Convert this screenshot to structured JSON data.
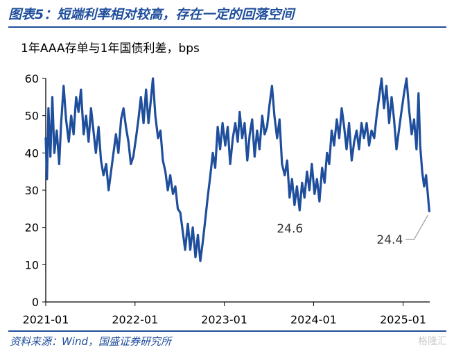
{
  "header": {
    "title": "图表5：短端利率相对较高，存在一定的回落空间"
  },
  "footer": {
    "source": "资料来源：Wind，国盛证券研究所",
    "watermark": "格隆汇"
  },
  "chart_data": {
    "type": "line",
    "subtitle": "1年AAA存单与1年国债利差，bps",
    "ylim": [
      0,
      60
    ],
    "yticks": [
      0,
      10,
      20,
      30,
      40,
      50,
      60
    ],
    "xlim": [
      "2021-01-01",
      "2025-04-20"
    ],
    "xticks": [
      "2021-01",
      "2022-01",
      "2023-01",
      "2024-01",
      "2025-01"
    ],
    "grid": false,
    "series": [
      {
        "color": "#1f4e9c",
        "points": [
          [
            "2021-01-01",
            44
          ],
          [
            "2021-01-06",
            33
          ],
          [
            "2021-01-12",
            52
          ],
          [
            "2021-01-20",
            39
          ],
          [
            "2021-01-28",
            55
          ],
          [
            "2021-02-05",
            40
          ],
          [
            "2021-02-15",
            46
          ],
          [
            "2021-02-25",
            37
          ],
          [
            "2021-03-05",
            48
          ],
          [
            "2021-03-15",
            58
          ],
          [
            "2021-03-25",
            49
          ],
          [
            "2021-04-05",
            43
          ],
          [
            "2021-04-15",
            50
          ],
          [
            "2021-04-25",
            45
          ],
          [
            "2021-05-05",
            55
          ],
          [
            "2021-05-15",
            51
          ],
          [
            "2021-05-25",
            57
          ],
          [
            "2021-06-05",
            45
          ],
          [
            "2021-06-15",
            50
          ],
          [
            "2021-06-25",
            43
          ],
          [
            "2021-07-05",
            52
          ],
          [
            "2021-07-15",
            46
          ],
          [
            "2021-07-25",
            40
          ],
          [
            "2021-08-05",
            47
          ],
          [
            "2021-08-15",
            38
          ],
          [
            "2021-08-25",
            34
          ],
          [
            "2021-09-05",
            37
          ],
          [
            "2021-09-15",
            30
          ],
          [
            "2021-09-25",
            35
          ],
          [
            "2021-10-05",
            40
          ],
          [
            "2021-10-15",
            45
          ],
          [
            "2021-10-25",
            40
          ],
          [
            "2021-11-05",
            49
          ],
          [
            "2021-11-15",
            52
          ],
          [
            "2021-11-25",
            47
          ],
          [
            "2021-12-05",
            43
          ],
          [
            "2021-12-15",
            37
          ],
          [
            "2021-12-25",
            39
          ],
          [
            "2022-01-05",
            44
          ],
          [
            "2022-01-15",
            49
          ],
          [
            "2022-01-25",
            55
          ],
          [
            "2022-02-05",
            48
          ],
          [
            "2022-02-15",
            57
          ],
          [
            "2022-02-25",
            48
          ],
          [
            "2022-03-05",
            53
          ],
          [
            "2022-03-15",
            60
          ],
          [
            "2022-03-25",
            50
          ],
          [
            "2022-04-05",
            44
          ],
          [
            "2022-04-15",
            46
          ],
          [
            "2022-04-25",
            38
          ],
          [
            "2022-05-05",
            35
          ],
          [
            "2022-05-15",
            30
          ],
          [
            "2022-05-25",
            34
          ],
          [
            "2022-06-05",
            29
          ],
          [
            "2022-06-15",
            31
          ],
          [
            "2022-06-25",
            25
          ],
          [
            "2022-07-05",
            24
          ],
          [
            "2022-07-15",
            19
          ],
          [
            "2022-07-25",
            14
          ],
          [
            "2022-08-05",
            21
          ],
          [
            "2022-08-15",
            14
          ],
          [
            "2022-08-25",
            20
          ],
          [
            "2022-09-05",
            12
          ],
          [
            "2022-09-15",
            18
          ],
          [
            "2022-09-25",
            11
          ],
          [
            "2022-10-05",
            16
          ],
          [
            "2022-10-15",
            22
          ],
          [
            "2022-10-25",
            28
          ],
          [
            "2022-11-05",
            34
          ],
          [
            "2022-11-15",
            40
          ],
          [
            "2022-11-25",
            36
          ],
          [
            "2022-12-05",
            47
          ],
          [
            "2022-12-15",
            41
          ],
          [
            "2022-12-25",
            48
          ],
          [
            "2023-01-05",
            42
          ],
          [
            "2023-01-15",
            47
          ],
          [
            "2023-01-25",
            37
          ],
          [
            "2023-02-05",
            44
          ],
          [
            "2023-02-15",
            48
          ],
          [
            "2023-02-25",
            43
          ],
          [
            "2023-03-05",
            51
          ],
          [
            "2023-03-15",
            44
          ],
          [
            "2023-03-25",
            48
          ],
          [
            "2023-04-05",
            38
          ],
          [
            "2023-04-15",
            45
          ],
          [
            "2023-04-25",
            49
          ],
          [
            "2023-05-05",
            39
          ],
          [
            "2023-05-15",
            46
          ],
          [
            "2023-05-25",
            41
          ],
          [
            "2023-06-05",
            50
          ],
          [
            "2023-06-15",
            45
          ],
          [
            "2023-06-25",
            47
          ],
          [
            "2023-07-05",
            53
          ],
          [
            "2023-07-15",
            58
          ],
          [
            "2023-07-25",
            50
          ],
          [
            "2023-08-05",
            44
          ],
          [
            "2023-08-15",
            49
          ],
          [
            "2023-08-25",
            37
          ],
          [
            "2023-09-05",
            34
          ],
          [
            "2023-09-15",
            38
          ],
          [
            "2023-09-25",
            28
          ],
          [
            "2023-10-05",
            33
          ],
          [
            "2023-10-15",
            26
          ],
          [
            "2023-10-25",
            31
          ],
          [
            "2023-11-05",
            24.6
          ],
          [
            "2023-11-15",
            32
          ],
          [
            "2023-11-25",
            28
          ],
          [
            "2023-12-05",
            35
          ],
          [
            "2023-12-15",
            30
          ],
          [
            "2023-12-25",
            37
          ],
          [
            "2024-01-05",
            29
          ],
          [
            "2024-01-15",
            33
          ],
          [
            "2024-01-25",
            27
          ],
          [
            "2024-02-05",
            36
          ],
          [
            "2024-02-15",
            32
          ],
          [
            "2024-02-25",
            40
          ],
          [
            "2024-03-05",
            37
          ],
          [
            "2024-03-15",
            46
          ],
          [
            "2024-03-25",
            42
          ],
          [
            "2024-04-05",
            49
          ],
          [
            "2024-04-15",
            44
          ],
          [
            "2024-04-25",
            52
          ],
          [
            "2024-05-05",
            47
          ],
          [
            "2024-05-15",
            41
          ],
          [
            "2024-05-25",
            48
          ],
          [
            "2024-06-05",
            38
          ],
          [
            "2024-06-15",
            43
          ],
          [
            "2024-06-25",
            46
          ],
          [
            "2024-07-05",
            41
          ],
          [
            "2024-07-15",
            48
          ],
          [
            "2024-07-25",
            44
          ],
          [
            "2024-08-05",
            48
          ],
          [
            "2024-08-15",
            42
          ],
          [
            "2024-08-25",
            46
          ],
          [
            "2024-09-05",
            44
          ],
          [
            "2024-09-15",
            50
          ],
          [
            "2024-09-25",
            55
          ],
          [
            "2024-10-05",
            60
          ],
          [
            "2024-10-15",
            52
          ],
          [
            "2024-10-25",
            58
          ],
          [
            "2024-11-05",
            48
          ],
          [
            "2024-11-15",
            55
          ],
          [
            "2024-11-25",
            49
          ],
          [
            "2024-12-05",
            41
          ],
          [
            "2024-12-15",
            46
          ],
          [
            "2024-12-25",
            51
          ],
          [
            "2025-01-05",
            56
          ],
          [
            "2025-01-15",
            60
          ],
          [
            "2025-01-25",
            52
          ],
          [
            "2025-02-05",
            45
          ],
          [
            "2025-02-15",
            49
          ],
          [
            "2025-02-25",
            41
          ],
          [
            "2025-03-05",
            56
          ],
          [
            "2025-03-12",
            42
          ],
          [
            "2025-03-20",
            35
          ],
          [
            "2025-03-28",
            31
          ],
          [
            "2025-04-05",
            34
          ],
          [
            "2025-04-12",
            29
          ],
          [
            "2025-04-18",
            24.4
          ]
        ]
      }
    ],
    "annotations": [
      {
        "text": "24.6",
        "x": "2023-11-05",
        "y": 24.6,
        "leader": false
      },
      {
        "text": "24.4",
        "x": "2025-04-18",
        "y": 24.4,
        "leader": true
      }
    ]
  }
}
